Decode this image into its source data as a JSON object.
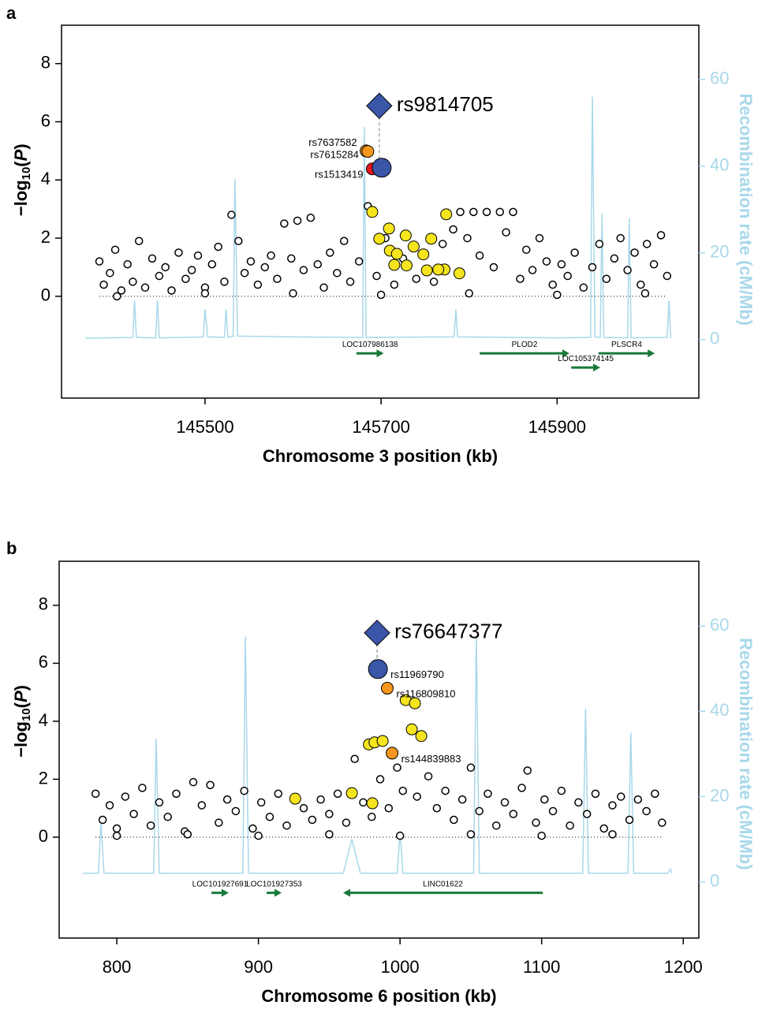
{
  "chart_data": [
    {
      "type": "scatter",
      "panel": "a",
      "xlabel": "Chromosome 3 position (kb)",
      "ylabel_parts": [
        "−log",
        "10",
        "(",
        "P",
        ")"
      ],
      "y2label": "Recombination rate (cM/Mb)",
      "xlim": [
        145337,
        146061
      ],
      "xticks": [
        145500,
        145700,
        145900
      ],
      "ylim": [
        -3.5,
        9.32
      ],
      "yticks": [
        0,
        2,
        4,
        6,
        8
      ],
      "y2lim": [
        -13.5,
        72.5
      ],
      "y2ticks": [
        0,
        20,
        40,
        60
      ],
      "series": [
        {
          "color": "#ffffff",
          "x": [
            145380,
            145385,
            145392,
            145398,
            145405,
            145412,
            145418,
            145425,
            145432,
            145440,
            145448,
            145455,
            145462,
            145470,
            145478,
            145485,
            145492,
            145500,
            145508,
            145515,
            145522,
            145530,
            145538,
            145545,
            145552,
            145560,
            145568,
            145575,
            145582,
            145590,
            145598,
            145605,
            145612,
            145620,
            145628,
            145635,
            145642,
            145650,
            145658,
            145665,
            145675,
            145685,
            145695,
            145705,
            145715,
            145725,
            145740,
            145760,
            145770,
            145782,
            145790,
            145798,
            145805,
            145812,
            145820,
            145828,
            145835,
            145842,
            145850,
            145858,
            145865,
            145872,
            145880,
            145888,
            145895,
            145905,
            145912,
            145920,
            145930,
            145940,
            145948,
            145956,
            145965,
            145972,
            145980,
            145988,
            145995,
            146002,
            146010,
            146018,
            146025,
            145400,
            145500,
            145600,
            145700,
            145800,
            145900,
            146000
          ],
          "values": [
            1.2,
            0.4,
            0.8,
            1.6,
            0.2,
            1.1,
            0.5,
            1.9,
            0.3,
            1.3,
            0.7,
            1.0,
            0.2,
            1.5,
            0.6,
            0.9,
            1.4,
            0.3,
            1.1,
            1.7,
            0.5,
            2.8,
            1.9,
            0.8,
            1.2,
            0.4,
            1.0,
            1.4,
            0.6,
            2.5,
            1.3,
            2.6,
            0.9,
            2.7,
            1.1,
            0.3,
            1.5,
            0.8,
            1.9,
            0.5,
            1.2,
            3.1,
            0.7,
            2.0,
            0.4,
            1.3,
            0.6,
            0.5,
            1.8,
            2.3,
            2.9,
            2.0,
            2.9,
            1.4,
            2.9,
            1.0,
            2.9,
            2.2,
            2.9,
            0.6,
            1.6,
            0.9,
            2.0,
            1.2,
            0.4,
            1.1,
            0.7,
            1.5,
            0.3,
            1.0,
            1.8,
            0.6,
            1.3,
            2.0,
            0.9,
            1.5,
            0.4,
            1.8,
            1.1,
            2.1,
            0.7,
            0.0,
            0.1,
            0.1,
            0.05,
            0.1,
            0.05,
            0.1
          ]
        },
        {
          "color": "#f5e41e",
          "x": [
            145690,
            145774,
            145709,
            145698,
            145728,
            145757,
            145710,
            145718,
            145737,
            145748,
            145729,
            145752,
            145772,
            145789,
            145765,
            145715
          ],
          "values": [
            2.9,
            2.82,
            2.33,
            1.98,
            2.09,
            1.98,
            1.57,
            1.46,
            1.71,
            1.44,
            1.06,
            0.89,
            0.92,
            0.79,
            0.92,
            1.08
          ]
        },
        {
          "color": "#f5961e",
          "x": [
            145683,
            145685
          ],
          "values": [
            5.0,
            4.98
          ],
          "labels": [
            "rs7637582",
            "rs7615284"
          ]
        },
        {
          "color": "#e8161c",
          "x": [
            145690
          ],
          "values": [
            4.38
          ],
          "labels": [
            "rs1513419"
          ]
        },
        {
          "color": "#3a56a8",
          "x": [
            145700.7
          ],
          "values": [
            4.42
          ]
        },
        {
          "color": "#3a56a8",
          "marker": "diamond",
          "x": [
            145698
          ],
          "values": [
            6.55
          ],
          "labels": [
            "rs9814705"
          ]
        },
        {
          "axis": "y2",
          "type": "line",
          "color": "#a8d8ea",
          "x": [
            145364,
            145418,
            145420,
            145422,
            145444,
            145446,
            145448,
            145498,
            145500,
            145503,
            145522,
            145524,
            145526,
            145532,
            145534,
            145537,
            145600,
            145679,
            145681,
            145683,
            145783,
            145785,
            145787,
            145900,
            145938,
            145940,
            145943,
            145949,
            145951,
            145953,
            145980,
            145982,
            145984,
            146025,
            146027,
            146029
          ],
          "values": [
            0.3,
            0.5,
            9,
            0.5,
            0.4,
            9,
            0.4,
            0.6,
            7,
            0.6,
            0.5,
            7,
            0.5,
            0.8,
            37,
            0.8,
            0.6,
            0.5,
            49,
            0.5,
            0.6,
            7,
            0.6,
            0.4,
            0.5,
            56,
            0.6,
            0.5,
            29,
            0.5,
            0.4,
            28,
            0.4,
            0.5,
            9,
            0.3
          ]
        }
      ],
      "genes": [
        {
          "label": "LOC107986138",
          "start": 145672,
          "end": 145703,
          "direction": "right"
        },
        {
          "label": "PLOD2",
          "start": 145812,
          "end": 145914,
          "direction": "right"
        },
        {
          "label": "LOC105374145",
          "start": 145916,
          "end": 145949,
          "direction": "right"
        },
        {
          "label": "PLSCR4",
          "start": 145947,
          "end": 146011,
          "direction": "right"
        }
      ]
    },
    {
      "type": "scatter",
      "panel": "b",
      "xlabel": "Chromosome 6 position (kb)",
      "ylabel_parts": [
        "−log",
        "10",
        "(",
        "P",
        ")"
      ],
      "y2label": "Recombination rate (cM/Mb)",
      "xlim": [
        759.3,
        1211
      ],
      "xticks": [
        800,
        900,
        1000,
        1100,
        1200
      ],
      "ylim": [
        -3.48,
        9.52
      ],
      "yticks": [
        0,
        2,
        4,
        6,
        8
      ],
      "y2lim": [
        -13.2,
        75.2
      ],
      "y2ticks": [
        0,
        20,
        40,
        60
      ],
      "series": [
        {
          "color": "#ffffff",
          "x": [
            785,
            790,
            795,
            800,
            806,
            812,
            818,
            824,
            830,
            836,
            842,
            848,
            854,
            860,
            866,
            872,
            878,
            884,
            890,
            896,
            902,
            908,
            914,
            920,
            932,
            938,
            944,
            950,
            956,
            962,
            968,
            974,
            980,
            986,
            992,
            998,
            1002,
            1012,
            1020,
            1026,
            1032,
            1038,
            1044,
            1050,
            1056,
            1062,
            1068,
            1074,
            1080,
            1086,
            1090,
            1096,
            1102,
            1108,
            1114,
            1120,
            1126,
            1132,
            1138,
            1144,
            1150,
            1156,
            1162,
            1168,
            1174,
            1180,
            1185,
            800,
            850,
            900,
            950,
            1000,
            1050,
            1100,
            1150
          ],
          "values": [
            1.5,
            0.6,
            1.1,
            0.3,
            1.4,
            0.8,
            1.7,
            0.4,
            1.2,
            0.7,
            1.5,
            0.2,
            1.9,
            1.1,
            1.8,
            0.5,
            1.3,
            0.9,
            1.6,
            0.3,
            1.2,
            0.7,
            1.5,
            0.4,
            1.0,
            0.6,
            1.3,
            0.8,
            1.5,
            0.5,
            2.7,
            1.2,
            0.7,
            2.0,
            1.0,
            2.4,
            1.6,
            1.4,
            2.1,
            1.0,
            1.6,
            0.6,
            1.3,
            2.4,
            0.9,
            1.5,
            0.4,
            1.2,
            0.8,
            1.7,
            2.3,
            0.5,
            1.3,
            0.9,
            1.6,
            0.4,
            1.2,
            0.8,
            1.5,
            0.3,
            1.1,
            1.4,
            0.6,
            1.3,
            0.9,
            1.5,
            0.5,
            0.05,
            0.1,
            0.05,
            0.1,
            0.05,
            0.1,
            0.05,
            0.1
          ]
        },
        {
          "color": "#f5e41e",
          "x": [
            1004,
            1010.5,
            1008.3,
            1015,
            978,
            982,
            987.7,
            966,
            980.5,
            926
          ],
          "values": [
            4.73,
            4.62,
            3.72,
            3.49,
            3.2,
            3.27,
            3.32,
            1.52,
            1.17,
            1.33
          ]
        },
        {
          "color": "#f5961e",
          "x": [
            991,
            994.4
          ],
          "values": [
            5.14,
            2.9
          ],
          "labels": [
            "rs116809810",
            "rs144839883"
          ]
        },
        {
          "color": "#3a56a8",
          "x": [
            984.4
          ],
          "values": [
            5.8
          ],
          "labels": [
            "rs11969790"
          ]
        },
        {
          "color": "#3a56a8",
          "marker": "diamond",
          "x": [
            983.8
          ],
          "values": [
            7.05
          ],
          "labels": [
            "rs76647377"
          ]
        },
        {
          "axis": "y2",
          "type": "line",
          "color": "#a8d8ea",
          "x": [
            776,
            787,
            788.8,
            791,
            826,
            827.8,
            830,
            889,
            890.8,
            893,
            960,
            966,
            972,
            998,
            1000,
            1002,
            1052,
            1053.9,
            1056,
            1129,
            1131,
            1133,
            1161,
            1163,
            1165,
            1189,
            1191,
            1192
          ],
          "values": [
            2,
            2,
            14,
            2,
            2,
            33.5,
            2,
            2,
            57.5,
            2,
            2,
            10,
            2,
            2,
            12,
            2,
            2,
            57.5,
            2,
            2,
            40.6,
            2,
            2,
            35,
            2,
            2,
            3,
            2
          ]
        }
      ],
      "genes": [
        {
          "label": "LOC101927691",
          "start": 866.8,
          "end": 879,
          "direction": "right"
        },
        {
          "label": "LOC101927353",
          "start": 905.8,
          "end": 916.4,
          "direction": "right"
        },
        {
          "label": "LINC01622",
          "start": 959.8,
          "end": 1100.8,
          "direction": "left"
        }
      ]
    }
  ]
}
